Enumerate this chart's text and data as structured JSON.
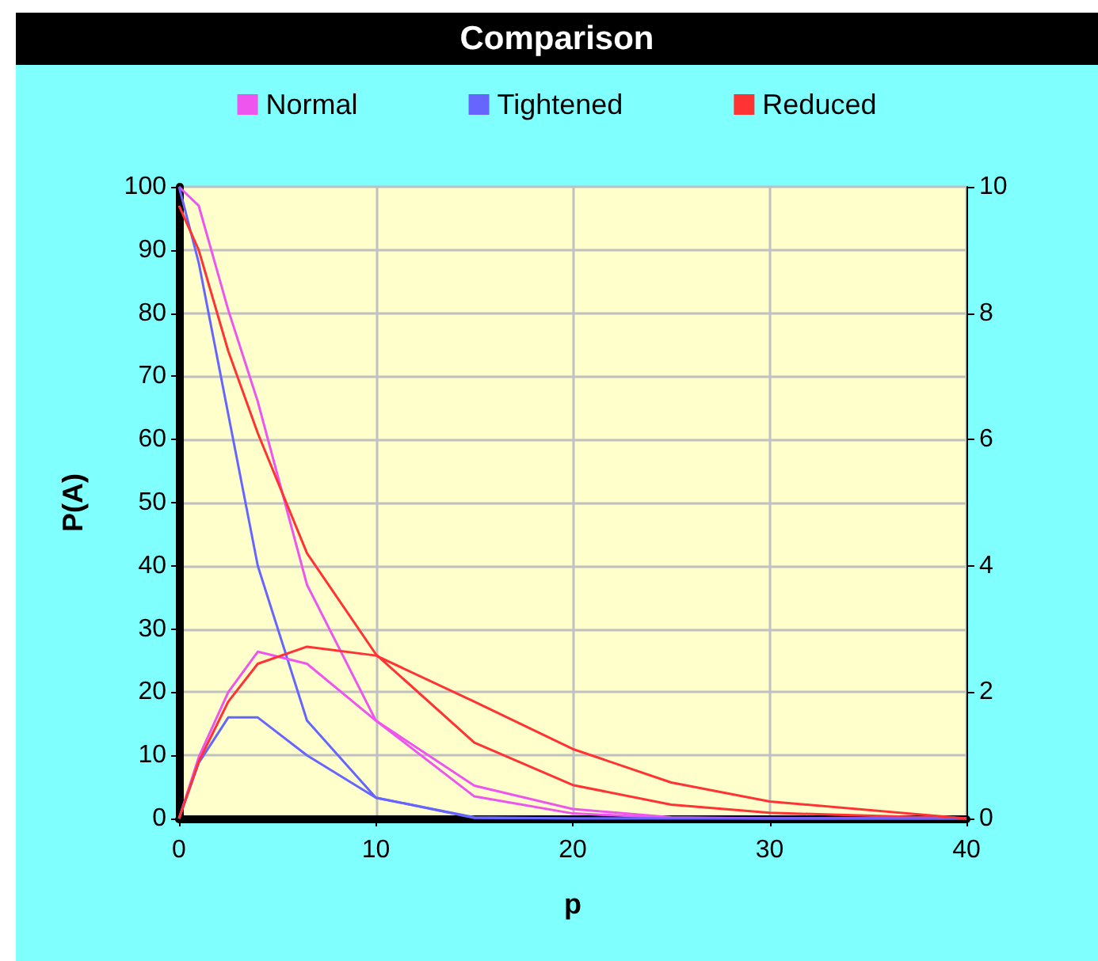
{
  "chart_data": {
    "type": "line",
    "title": "Comparison",
    "xlabel": "p",
    "ylabel": "P(A)",
    "x": [
      0,
      1,
      2.5,
      4,
      6.5,
      10,
      15,
      20,
      25,
      30,
      40
    ],
    "series": [
      {
        "name": "Normal",
        "color": "#ee55ee",
        "values": [
          100,
          97,
          80.5,
          66,
          37,
          15.5,
          3.5,
          0.8,
          0.1,
          0,
          0
        ]
      },
      {
        "name": "Tightened",
        "color": "#6666ff",
        "values": [
          100,
          88,
          64,
          40,
          15.5,
          3.3,
          0.1,
          0,
          0,
          0,
          0
        ]
      },
      {
        "name": "Reduced",
        "color": "#ff3333",
        "values": [
          97,
          90,
          74,
          61,
          42,
          26,
          12,
          5.3,
          2.2,
          0.9,
          0
        ]
      },
      {
        "color": "#ee55ee",
        "axis": "y2",
        "values": [
          0,
          0.97,
          2.0,
          2.64,
          2.45,
          1.55,
          0.52,
          0.15,
          0.02,
          0,
          0
        ]
      },
      {
        "color": "#6666ff",
        "axis": "y2",
        "values": [
          0,
          0.88,
          1.6,
          1.6,
          1.0,
          0.33,
          0.02,
          0,
          0,
          0,
          0
        ]
      },
      {
        "color": "#ff3333",
        "axis": "y2",
        "values": [
          0,
          0.9,
          1.85,
          2.45,
          2.72,
          2.58,
          1.85,
          1.1,
          0.57,
          0.27,
          0
        ]
      }
    ],
    "xlim": [
      0,
      40
    ],
    "xticks": [
      0,
      10,
      20,
      30,
      40
    ],
    "ylim": [
      0,
      100
    ],
    "yticks": [
      0,
      10,
      20,
      30,
      40,
      50,
      60,
      70,
      80,
      90,
      100
    ],
    "y2lim": [
      0,
      10
    ],
    "y2ticks": [
      0,
      2,
      4,
      6,
      8,
      10
    ],
    "grid": true,
    "legend": "top",
    "marker": "none",
    "line_style": "solid"
  }
}
